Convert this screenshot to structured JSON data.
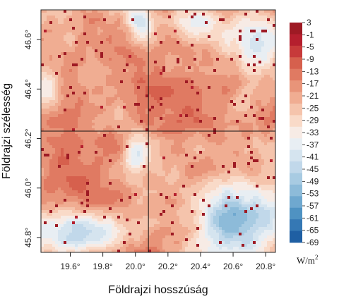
{
  "chart_data": {
    "type": "heatmap",
    "xlabel": "Földrajzi hosszúság",
    "ylabel": "Földrajzi szélesség",
    "xlim": [
      19.42,
      20.86
    ],
    "ylim": [
      45.74,
      46.72
    ],
    "x_ticks": [
      {
        "value": 19.6,
        "label": "19.6°"
      },
      {
        "value": 19.8,
        "label": "19.8°"
      },
      {
        "value": 20.0,
        "label": "20.0°"
      },
      {
        "value": 20.2,
        "label": "20.2°"
      },
      {
        "value": 20.4,
        "label": "20.4°"
      },
      {
        "value": 20.6,
        "label": "20.6°"
      },
      {
        "value": 20.8,
        "label": "20.8°"
      }
    ],
    "y_ticks": [
      {
        "value": 45.8,
        "label": "45.8°"
      },
      {
        "value": 46.0,
        "label": "46.0°"
      },
      {
        "value": 46.2,
        "label": "46.2°"
      },
      {
        "value": 46.4,
        "label": "46.4°"
      },
      {
        "value": 46.6,
        "label": "46.6°"
      }
    ],
    "reference_lines": {
      "vertical_lon": 20.08,
      "horizontal_lat": 46.23
    },
    "colorbar": {
      "unit": "W/m",
      "unit_superscript": "2",
      "ticks": [
        "3",
        "-1",
        "-5",
        "-9",
        "-13",
        "-17",
        "-21",
        "-25",
        "-29",
        "-33",
        "-37",
        "-41",
        "-45",
        "-49",
        "-53",
        "-57",
        "-61",
        "-65",
        "-69"
      ],
      "colors": [
        "#9e1a24",
        "#b51f2e",
        "#c73a3a",
        "#d6604d",
        "#e07a62",
        "#e89479",
        "#f0ad92",
        "#f5c4ac",
        "#f9dac8",
        "#f7ebe5",
        "#e8eef3",
        "#d5e4ef",
        "#c1d8ea",
        "#a8cbe2",
        "#8dbbd9",
        "#6fa8cf",
        "#4f92c2",
        "#3578b4",
        "#1f5fa3"
      ],
      "range": [
        -69,
        3
      ]
    },
    "field_summary": [
      {
        "region": "north-west",
        "approx_value": -17
      },
      {
        "region": "north-center",
        "approx_value": -37
      },
      {
        "region": "center-south",
        "approx_value": -11
      },
      {
        "region": "west-center",
        "approx_value": -31
      },
      {
        "region": "south-east",
        "approx_value": -53
      },
      {
        "region": "south-west",
        "approx_value": -41
      }
    ]
  }
}
